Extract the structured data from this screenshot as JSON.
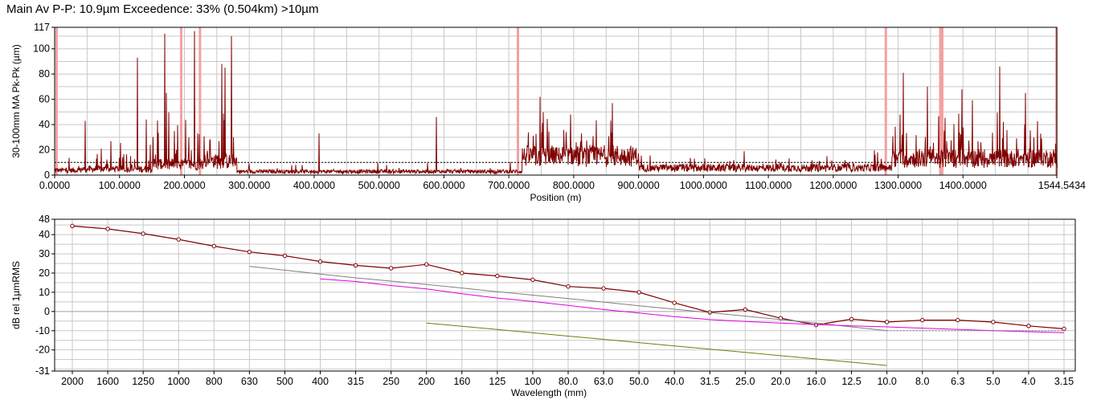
{
  "title": "Main Av P-P: 10.9µm Exceedence: 33% (0.504km) >10µm",
  "colors": {
    "trace": "#800000",
    "grid": "#c8c8c8",
    "marker": "#f4a0a0",
    "threshold": "#000000",
    "gray_line": "#808080",
    "magenta_line": "#e000e0",
    "olive_line": "#6e7d10",
    "markers_outline": "#800000"
  },
  "chart_data": [
    {
      "type": "line",
      "title": "Main Av P-P: 10.9µm Exceedence: 33% (0.504km) >10µm",
      "xlabel": "Position (m)",
      "ylabel": "30-100mm MA Pk-Pk (µm)",
      "xlim": [
        0,
        1544.5434
      ],
      "ylim": [
        0,
        117
      ],
      "x_ticks": [
        "0.0000",
        "100.0000",
        "200.0000",
        "300.0000",
        "400.0000",
        "500.0000",
        "600.0000",
        "700.0000",
        "800.0000",
        "900.0000",
        "1000.0000",
        "1100.0000",
        "1200.0000",
        "1300.0000",
        "1400.0000",
        "1544.5434"
      ],
      "x_tick_values": [
        0,
        100,
        200,
        300,
        400,
        500,
        600,
        700,
        800,
        900,
        1000,
        1100,
        1200,
        1300,
        1400,
        1544.5434
      ],
      "y_ticks": [
        "0",
        "20",
        "40",
        "60",
        "80",
        "100",
        "117"
      ],
      "y_tick_values": [
        0,
        20,
        40,
        60,
        80,
        100,
        117
      ],
      "threshold": 10,
      "event_markers": [
        3,
        195,
        224,
        714,
        1281,
        1365,
        1368,
        1544
      ],
      "segments": [
        {
          "x0": 0,
          "x1": 40,
          "base": 4,
          "amp": 10,
          "prob": 0.05
        },
        {
          "x0": 40,
          "x1": 150,
          "base": 5,
          "amp": 14,
          "prob": 0.09
        },
        {
          "x0": 150,
          "x1": 230,
          "base": 9,
          "amp": 24,
          "prob": 0.16
        },
        {
          "x0": 230,
          "x1": 280,
          "base": 12,
          "amp": 26,
          "prob": 0.18
        },
        {
          "x0": 280,
          "x1": 400,
          "base": 3,
          "amp": 5,
          "prob": 0.04
        },
        {
          "x0": 400,
          "x1": 720,
          "base": 3,
          "amp": 5,
          "prob": 0.05
        },
        {
          "x0": 720,
          "x1": 900,
          "base": 16,
          "amp": 20,
          "prob": 0.12
        },
        {
          "x0": 900,
          "x1": 1290,
          "base": 6,
          "amp": 8,
          "prob": 0.08
        },
        {
          "x0": 1290,
          "x1": 1544.5434,
          "base": 14,
          "amp": 24,
          "prob": 0.14
        }
      ],
      "peaks": [
        [
          47,
          43
        ],
        [
          128,
          93
        ],
        [
          141,
          44
        ],
        [
          170,
          112
        ],
        [
          172,
          65
        ],
        [
          215,
          114
        ],
        [
          258,
          88
        ],
        [
          262,
          85
        ],
        [
          273,
          110
        ],
        [
          408,
          33
        ],
        [
          588,
          46
        ],
        [
          748,
          62
        ],
        [
          860,
          57
        ],
        [
          1308,
          81
        ],
        [
          1345,
          70
        ],
        [
          1398,
          68
        ],
        [
          1457,
          86
        ],
        [
          1496,
          65
        ]
      ]
    },
    {
      "type": "line",
      "xlabel": "Wavelength (mm)",
      "ylabel": "dB rel 1µmRMS",
      "ylim": [
        -31,
        48
      ],
      "y_ticks": [
        "-31",
        "-20",
        "-10",
        "0",
        "10",
        "20",
        "30",
        "40",
        "48"
      ],
      "y_tick_values": [
        -31,
        -20,
        -10,
        0,
        10,
        20,
        30,
        40,
        48
      ],
      "categories": [
        "2000",
        "1600",
        "1250",
        "1000",
        "800",
        "630",
        "500",
        "400",
        "315",
        "250",
        "200",
        "160",
        "125",
        "100",
        "80.0",
        "63.0",
        "50.0",
        "40.0",
        "31.5",
        "25.0",
        "20.0",
        "16.0",
        "12.5",
        "10.0",
        "8.0",
        "6.3",
        "5.0",
        "4.0",
        "3.15"
      ],
      "series": [
        {
          "values": [
            44.5,
            43,
            40.5,
            37.5,
            34,
            31,
            29,
            26,
            24,
            22.5,
            24.5,
            20,
            18.5,
            16.5,
            13,
            12,
            10,
            4.5,
            -0.5,
            1,
            -3.5,
            -7,
            -4,
            -5.5,
            -4.5,
            -4.5,
            -5.5,
            -7.5,
            -9
          ]
        },
        {
          "values": [
            null,
            null,
            null,
            null,
            null,
            23.5,
            21.5,
            19.5,
            17.5,
            15.8,
            14,
            12.2,
            10.3,
            8.5,
            6.7,
            4.9,
            3,
            1.2,
            -0.6,
            -2.4,
            -4.2,
            -6,
            -8,
            -10,
            null,
            null,
            null,
            null,
            null
          ]
        },
        {
          "values": [
            null,
            null,
            null,
            null,
            null,
            null,
            null,
            17,
            15.6,
            13.5,
            11.7,
            9.2,
            7,
            5.2,
            3.2,
            1,
            -0.8,
            -2.7,
            -4.2,
            -5.2,
            -6,
            -6.8,
            -7.5,
            -8,
            -8.7,
            -9.3,
            -10,
            -10.5,
            -11
          ]
        },
        {
          "values": [
            null,
            null,
            null,
            null,
            null,
            null,
            null,
            null,
            null,
            null,
            -6,
            -7.7,
            -9.4,
            -11.1,
            -12.8,
            -14.5,
            -16.2,
            -17.9,
            -19.6,
            -21.3,
            -23,
            -24.7,
            -26.4,
            -28.1,
            null,
            null,
            null,
            null,
            null
          ]
        }
      ]
    }
  ]
}
